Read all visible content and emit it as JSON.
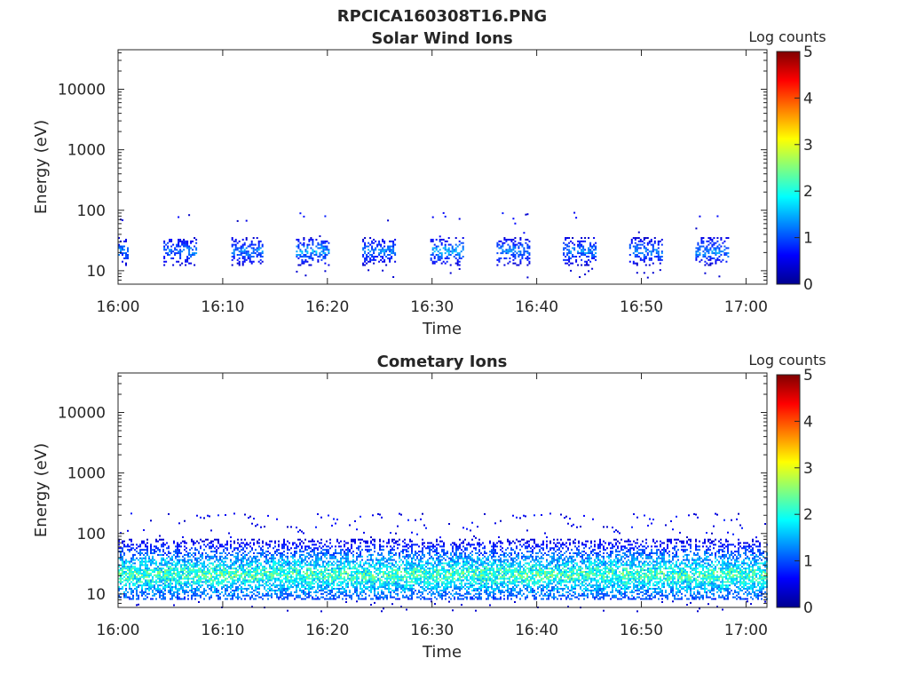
{
  "figure_title": "RPCICA160308T16.PNG",
  "chart_data": [
    {
      "type": "heatmap",
      "title": "Solar Wind Ions",
      "xlabel": "Time",
      "ylabel": "Energy (eV)",
      "x_ticks": [
        "16:00",
        "16:10",
        "16:20",
        "16:30",
        "16:40",
        "16:50",
        "17:00"
      ],
      "xlim": [
        "16:00",
        "17:02"
      ],
      "y_scale": "log",
      "y_ticks": [
        10,
        100,
        1000,
        10000
      ],
      "ylim": [
        6,
        45000
      ],
      "colorbar": {
        "label": "Log counts",
        "range": [
          0,
          5
        ],
        "ticks": [
          0,
          1,
          2,
          3,
          4,
          5
        ],
        "colormap": "jet"
      },
      "bursts": [
        {
          "start": "16:00:00",
          "end": "16:01:00",
          "energy_eV": [
            12,
            35
          ],
          "max_log_counts": 1.6
        },
        {
          "start": "16:04:20",
          "end": "16:07:30",
          "energy_eV": [
            12,
            35
          ],
          "max_log_counts": 1.6
        },
        {
          "start": "16:10:50",
          "end": "16:13:50",
          "energy_eV": [
            12,
            35
          ],
          "max_log_counts": 1.6
        },
        {
          "start": "16:17:00",
          "end": "16:20:10",
          "energy_eV": [
            12,
            35
          ],
          "max_log_counts": 1.8
        },
        {
          "start": "16:23:20",
          "end": "16:26:30",
          "energy_eV": [
            12,
            35
          ],
          "max_log_counts": 1.6
        },
        {
          "start": "16:29:50",
          "end": "16:33:00",
          "energy_eV": [
            12,
            35
          ],
          "max_log_counts": 1.8
        },
        {
          "start": "16:36:10",
          "end": "16:39:20",
          "energy_eV": [
            12,
            35
          ],
          "max_log_counts": 1.6
        },
        {
          "start": "16:42:30",
          "end": "16:45:40",
          "energy_eV": [
            12,
            35
          ],
          "max_log_counts": 1.6
        },
        {
          "start": "16:48:50",
          "end": "16:52:00",
          "energy_eV": [
            12,
            35
          ],
          "max_log_counts": 1.6
        },
        {
          "start": "16:55:10",
          "end": "16:58:20",
          "energy_eV": [
            12,
            35
          ],
          "max_log_counts": 1.7
        }
      ]
    },
    {
      "type": "heatmap",
      "title": "Cometary Ions",
      "xlabel": "Time",
      "ylabel": "Energy (eV)",
      "x_ticks": [
        "16:00",
        "16:10",
        "16:20",
        "16:30",
        "16:40",
        "16:50",
        "17:00"
      ],
      "xlim": [
        "16:00",
        "17:02"
      ],
      "y_scale": "log",
      "y_ticks": [
        10,
        100,
        1000,
        10000
      ],
      "ylim": [
        6,
        45000
      ],
      "colorbar": {
        "label": "Log counts",
        "range": [
          0,
          5
        ],
        "ticks": [
          0,
          1,
          2,
          3,
          4,
          5
        ],
        "colormap": "jet"
      },
      "bursts": [
        {
          "start": "16:00:00",
          "end": "17:02:00",
          "energy_eV": [
            8,
            80
          ],
          "peak_energy_eV": 20,
          "max_log_counts": 2.8
        }
      ]
    }
  ]
}
